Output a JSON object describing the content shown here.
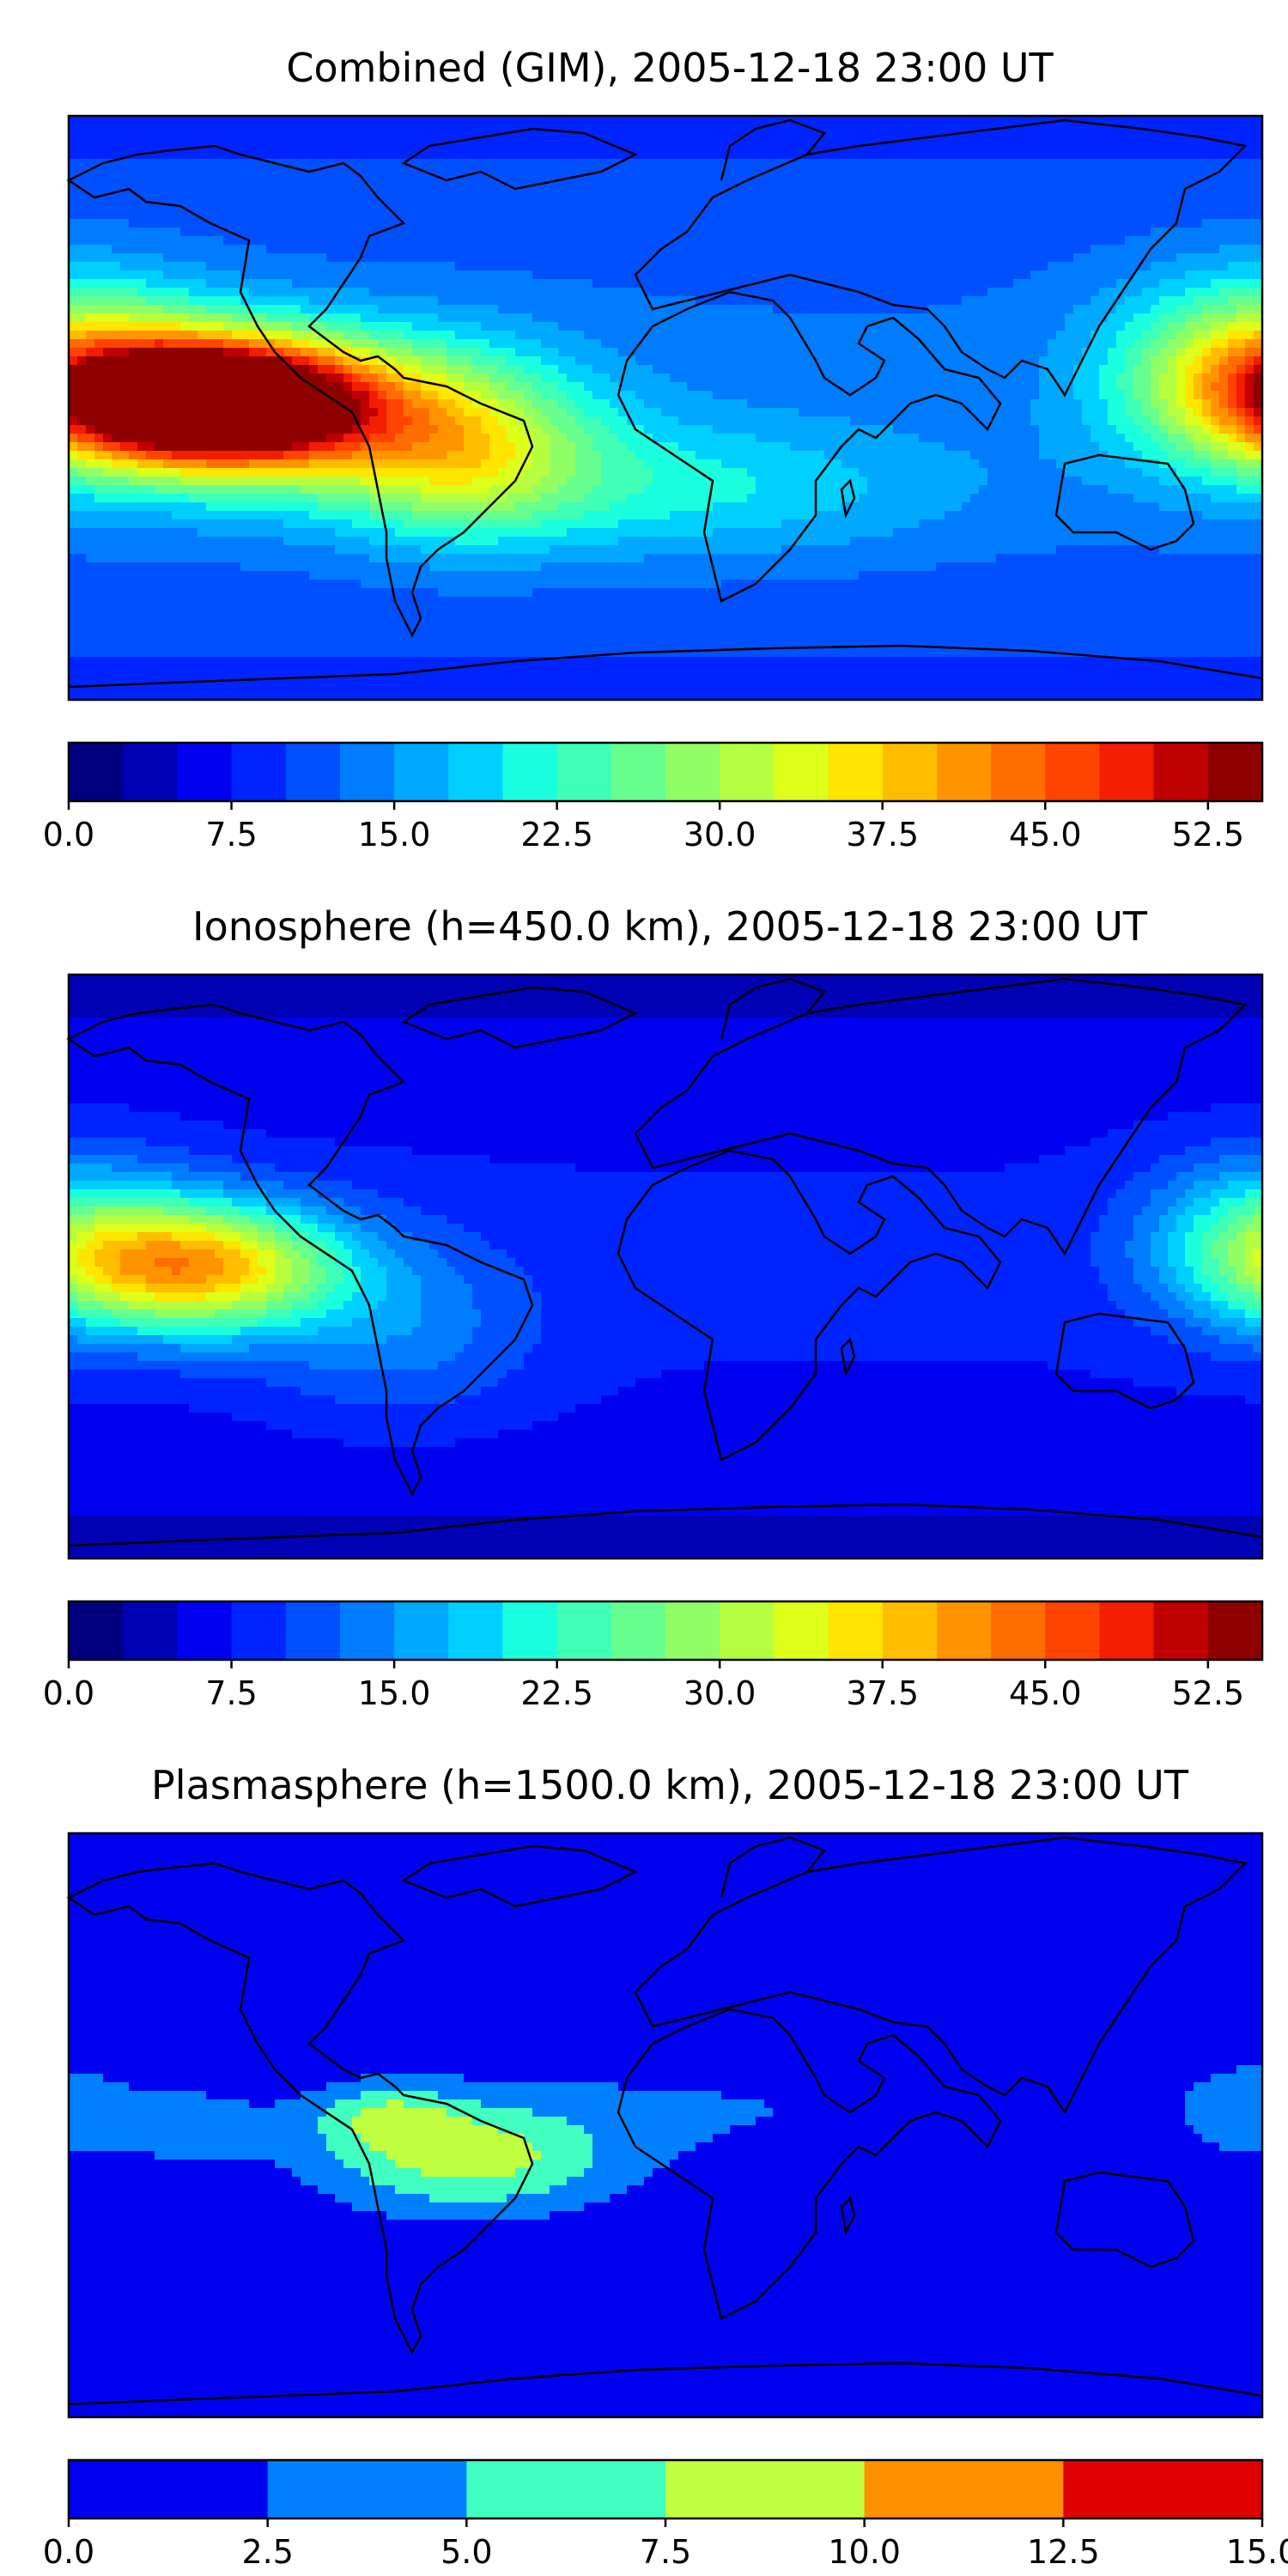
{
  "panels": [
    {
      "title": "Combined (GIM), 2005-12-18 23:00 UT",
      "colorbar_ticks": [
        "0.0",
        "7.5",
        "15.0",
        "22.5",
        "30.0",
        "37.5",
        "45.0",
        "52.5"
      ],
      "colorbar_levels": {
        "min": 0,
        "max": 55,
        "step": 2.5
      },
      "hotspots": [
        {
          "lon": -135,
          "lat": 2,
          "amp": 50,
          "slon": 30,
          "slat": 13
        },
        {
          "lon": -100,
          "lat": -2,
          "amp": 18,
          "slon": 45,
          "slat": 18
        },
        {
          "lon": 180,
          "lat": 10,
          "amp": 24,
          "slon": 30,
          "slat": 20
        },
        {
          "lon": -60,
          "lat": -15,
          "amp": 12,
          "slon": 25,
          "slat": 18
        },
        {
          "lon": 0,
          "lat": -25,
          "amp": 8,
          "slon": 60,
          "slat": 15
        }
      ],
      "base_value": 9
    },
    {
      "title": "Ionosphere  (h=450.0 km), 2005-12-18 23:00 UT",
      "colorbar_ticks": [
        "0.0",
        "7.5",
        "15.0",
        "22.5",
        "30.0",
        "37.5",
        "45.0",
        "52.5"
      ],
      "colorbar_levels": {
        "min": 0,
        "max": 55,
        "step": 2.5
      },
      "hotspots": [
        {
          "lon": -140,
          "lat": 0,
          "amp": 30,
          "slon": 30,
          "slat": 14
        },
        {
          "lon": 180,
          "lat": 8,
          "amp": 14,
          "slon": 25,
          "slat": 18
        },
        {
          "lon": -80,
          "lat": -20,
          "amp": 6,
          "slon": 30,
          "slat": 20
        }
      ],
      "base_value": 4
    },
    {
      "title": "Plasmasphere (h=1500.0 km), 2005-12-18 23:00 UT",
      "colorbar_ticks": [
        "0.0",
        "2.5",
        "5.0",
        "7.5",
        "10.0",
        "12.5",
        "15.0"
      ],
      "colorbar_levels": {
        "min": 0,
        "max": 15,
        "step": 2.5
      },
      "hotspots": [
        {
          "lon": -60,
          "lat": -10,
          "amp": 8,
          "slon": 30,
          "slat": 12
        },
        {
          "lon": -85,
          "lat": 3,
          "amp": 5,
          "slon": 15,
          "slat": 7
        },
        {
          "lon": -145,
          "lat": 0,
          "amp": 3,
          "slon": 20,
          "slat": 10
        },
        {
          "lon": 175,
          "lat": 5,
          "amp": 4,
          "slon": 15,
          "slat": 10
        },
        {
          "lon": 20,
          "lat": 5,
          "amp": 2,
          "slon": 60,
          "slat": 15
        }
      ],
      "base_value": 0.5
    }
  ],
  "colormaps": {
    "jet22": [
      "#00007f",
      "#0000b5",
      "#0000f1",
      "#0024ff",
      "#0050ff",
      "#007cff",
      "#00a8ff",
      "#00d0ff",
      "#1affdd",
      "#40ffb6",
      "#66ff90",
      "#90ff66",
      "#b6ff40",
      "#ddff1a",
      "#ffe500",
      "#ffbd00",
      "#ff9400",
      "#ff6c00",
      "#ff4300",
      "#f31d00",
      "#c00000",
      "#8e0000"
    ],
    "jet6": [
      "#0000f1",
      "#0080ff",
      "#40ffc0",
      "#c0ff40",
      "#ff9000",
      "#e00000"
    ]
  }
}
